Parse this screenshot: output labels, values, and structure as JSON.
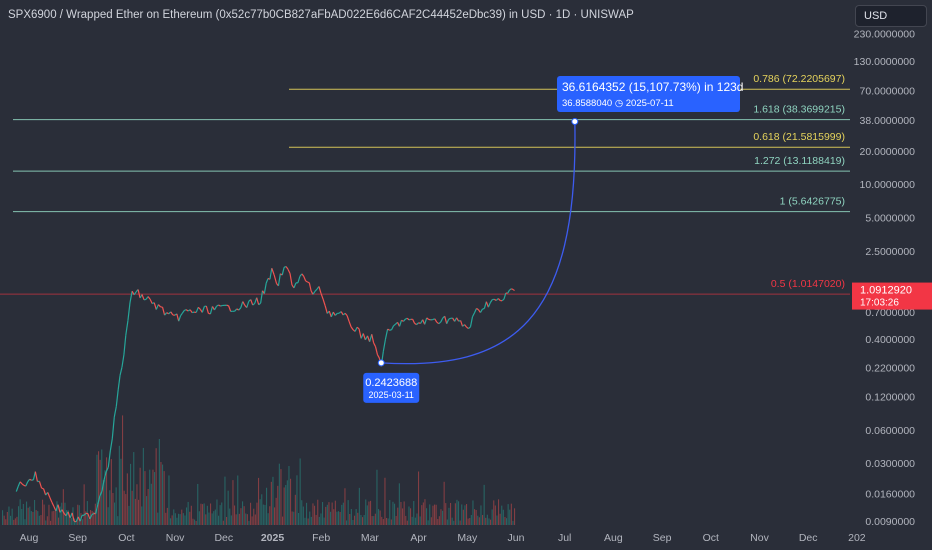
{
  "header": {
    "title": "SPX6900 / Wrapped Ether on Ethereum (0x52c77b0CB827aFbAD022E6d6CAF2C44452eDbc39) in USD · 1D · UNISWAP",
    "currency": "USD"
  },
  "colors": {
    "background": "#2a2e39",
    "up": "#26a69a",
    "down": "#ef5350",
    "fib_yellow": "#e5d35c",
    "fib_teal": "#8fd4c0",
    "fib_red": "#f23645",
    "projection": "#2962ff",
    "projection_curve": "#3d5cf0"
  },
  "chart_data": {
    "type": "line",
    "title": "SPX6900 / Wrapped Ether on Ethereum (0x52c77b0CB827aFbAD022E6d6CAF2C44452eDbc39) in USD · 1D · UNISWAP",
    "scale": "log",
    "ylim": [
      0.009,
      230
    ],
    "y_tick_labels": [
      "230.0000000",
      "130.0000000",
      "70.0000000",
      "38.0000000",
      "20.0000000",
      "10.0000000",
      "5.0000000",
      "2.5000000",
      "1.2000000",
      "0.7000000",
      "0.4000000",
      "0.2200000",
      "0.1200000",
      "0.0600000",
      "0.0300000",
      "0.0160000",
      "0.0090000"
    ],
    "x_tick_labels": [
      "Aug",
      "Sep",
      "Oct",
      "Nov",
      "Dec",
      "2025",
      "Feb",
      "Mar",
      "Apr",
      "May",
      "Jun",
      "Jul",
      "Aug",
      "Sep",
      "Oct",
      "Nov",
      "Dec",
      "202"
    ],
    "price_path": {
      "x": [
        "2024-07-24",
        "2024-08-05",
        "2024-08-18",
        "2024-09-01",
        "2024-09-12",
        "2024-09-20",
        "2024-09-25",
        "2024-10-01",
        "2024-10-05",
        "2024-10-15",
        "2024-11-01",
        "2024-11-08",
        "2024-12-01",
        "2024-12-15",
        "2024-12-25",
        "2025-01-01",
        "2025-01-04",
        "2025-01-10",
        "2025-01-15",
        "2025-01-20",
        "2025-01-27",
        "2025-02-01",
        "2025-02-05",
        "2025-02-15",
        "2025-02-25",
        "2025-03-05",
        "2025-03-11",
        "2025-03-15",
        "2025-03-25",
        "2025-04-01",
        "2025-04-15",
        "2025-04-25",
        "2025-05-05",
        "2025-05-10",
        "2025-05-20",
        "2025-05-25",
        "2025-06-01",
        "2025-06-03"
      ],
      "y": [
        0.018,
        0.023,
        0.012,
        0.009,
        0.011,
        0.03,
        0.1,
        0.4,
        1.1,
        0.9,
        0.6,
        0.7,
        0.75,
        0.8,
        0.9,
        1.6,
        1.2,
        1.8,
        1.2,
        1.5,
        1.05,
        1.1,
        0.7,
        0.65,
        0.45,
        0.4,
        0.2423688,
        0.45,
        0.6,
        0.55,
        0.6,
        0.6,
        0.5,
        0.7,
        0.9,
        0.85,
        1.1,
        1.091292
      ]
    },
    "projection": {
      "from": {
        "date": "2025-03-11",
        "value": 0.2423688,
        "label": "0.2423688",
        "date_label": "2025-03-11"
      },
      "to": {
        "date": "2025-07-11",
        "value": 36.858804,
        "label": "36.8588040",
        "date_label": "2025-07-11"
      },
      "headline": "36.6164352 (15,107.73%) in 123d"
    },
    "fib_levels": [
      {
        "label": "0.786 (72.2205697)",
        "value": 72.2205697,
        "color": "yellow"
      },
      {
        "label": "1.618 (38.3699215)",
        "value": 38.3699215,
        "color": "teal"
      },
      {
        "label": "0.618 (21.5815999)",
        "value": 21.5815999,
        "color": "yellow"
      },
      {
        "label": "1.272 (13.1188419)",
        "value": 13.1188419,
        "color": "teal"
      },
      {
        "label": "1 (5.6426775)",
        "value": 5.6426775,
        "color": "teal"
      },
      {
        "label": "0.5 (1.0147020)",
        "value": 1.014702,
        "color": "red"
      }
    ],
    "last_price": {
      "value": "1.0912920",
      "countdown": "17:03:26"
    },
    "grid": false
  }
}
